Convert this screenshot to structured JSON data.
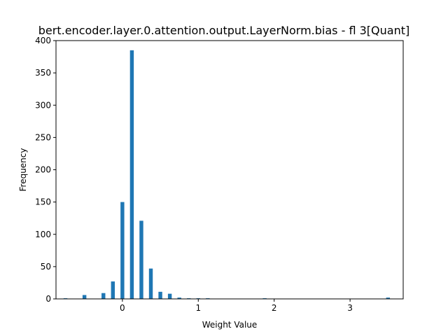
{
  "chart_data": {
    "type": "bar",
    "title": "bert.encoder.layer.0.attention.output.LayerNorm.bias - fl 3[Quant]",
    "xlabel": "Weight Value",
    "ylabel": "Frequency",
    "xlim": [
      -0.875,
      3.7
    ],
    "ylim": [
      0,
      400
    ],
    "bar_width": 0.05,
    "bar_color": "#1f77b4",
    "xticks": [
      0,
      1,
      2,
      3
    ],
    "yticks": [
      0,
      50,
      100,
      150,
      200,
      250,
      300,
      350,
      400
    ],
    "grid": false,
    "x": [
      -0.75,
      -0.5,
      -0.25,
      -0.125,
      0,
      0.125,
      0.25,
      0.375,
      0.5,
      0.625,
      0.75,
      0.875,
      1.0,
      1.125,
      1.875,
      3.5
    ],
    "values": [
      1,
      6,
      9,
      27,
      150,
      385,
      121,
      47,
      11,
      8,
      2,
      1,
      1,
      1,
      1,
      2
    ]
  }
}
